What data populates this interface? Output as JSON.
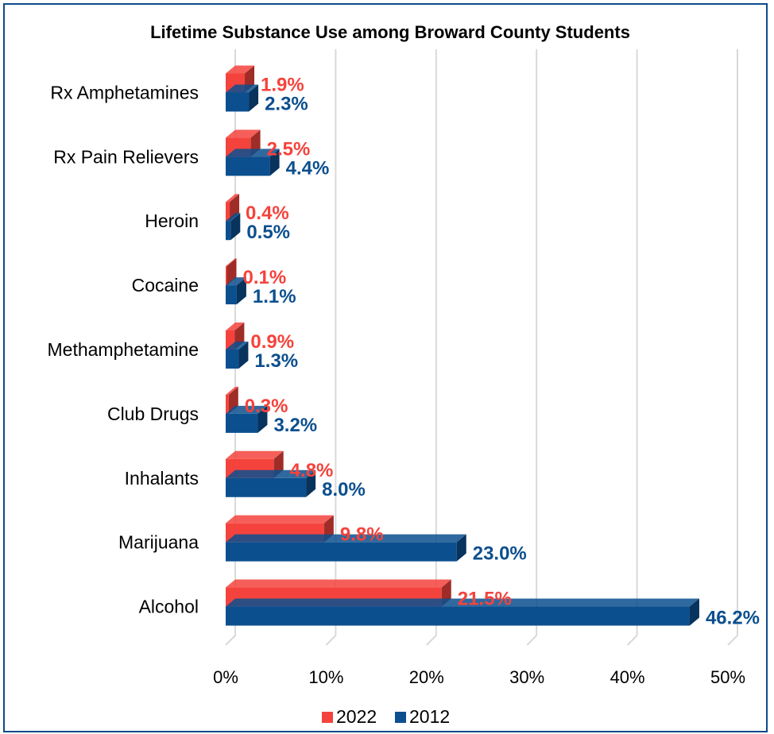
{
  "chart_data": {
    "type": "bar",
    "orientation": "horizontal",
    "style": "3d",
    "title": "Lifetime Substance Use among Broward County Students",
    "categories": [
      "Rx Amphetamines",
      "Rx Pain Relievers",
      "Heroin",
      "Cocaine",
      "Methamphetamine",
      "Club Drugs",
      "Inhalants",
      "Marijuana",
      "Alcohol"
    ],
    "series": [
      {
        "name": "2022",
        "color": "#f4433c",
        "label_color": "#f4433c",
        "values": [
          1.9,
          2.5,
          0.4,
          0.1,
          0.9,
          0.3,
          4.8,
          9.8,
          21.5
        ]
      },
      {
        "name": "2012",
        "color": "#0b4f8e",
        "label_color": "#0b4f8e",
        "values": [
          2.3,
          4.4,
          0.5,
          1.1,
          1.3,
          3.2,
          8.0,
          23.0,
          46.2
        ]
      }
    ],
    "value_format": "percent_1dp",
    "xlim": [
      0,
      50
    ],
    "xticks": [
      "0%",
      "10%",
      "20%",
      "30%",
      "40%",
      "50%"
    ],
    "grid": true,
    "legend_position": "bottom"
  }
}
